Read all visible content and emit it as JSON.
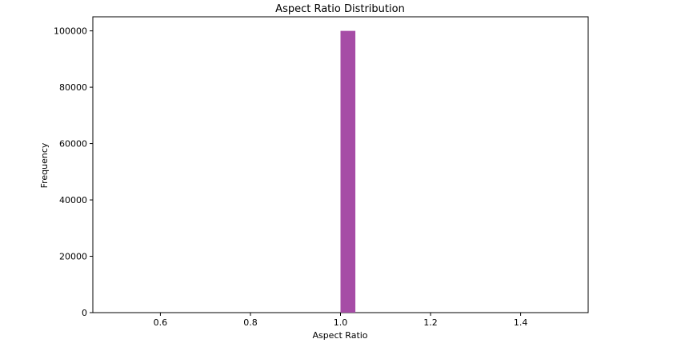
{
  "chart_data": {
    "type": "bar",
    "title": "Aspect Ratio Distribution",
    "xlabel": "Aspect Ratio",
    "ylabel": "Frequency",
    "xlim": [
      0.45,
      1.55
    ],
    "ylim": [
      0,
      105000
    ],
    "x_ticks": [
      0.6,
      0.8,
      1.0,
      1.2,
      1.4
    ],
    "x_tick_labels": [
      "0.6",
      "0.8",
      "1.0",
      "1.2",
      "1.4"
    ],
    "y_ticks": [
      0,
      20000,
      40000,
      60000,
      80000,
      100000
    ],
    "y_tick_labels": [
      "0",
      "20000",
      "40000",
      "60000",
      "80000",
      "100000"
    ],
    "bins": [
      {
        "start": 1.0,
        "end": 1.033,
        "value": 100000
      }
    ],
    "bar_color": "#a64ca6",
    "grid": false,
    "legend": "none"
  }
}
